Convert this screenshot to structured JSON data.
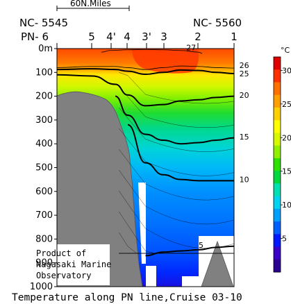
{
  "chart_data": {
    "type": "heatmap",
    "title": "Temperature along PN line,Cruise 03-10",
    "variable_unit": "°C",
    "y_axis": {
      "direction": "downward",
      "ylim": [
        0,
        1000
      ],
      "ticks": [
        "0m",
        "100",
        "200",
        "300",
        "400",
        "500",
        "600",
        "700",
        "800",
        "900",
        "1000"
      ]
    },
    "stations": [
      "PN- 6",
      "5",
      "4'",
      "4",
      "3'",
      "3",
      "2",
      "1"
    ],
    "station_ids": {
      "left": "NC- 5545",
      "right": "NC- 5560"
    },
    "scale_bar": "60N.Miles",
    "colorbar": {
      "range": [
        0,
        32
      ],
      "ticks": [
        5,
        10,
        15,
        20,
        25,
        30
      ],
      "colors": [
        "#2a0090",
        "#3a00c8",
        "#0018ff",
        "#0060ff",
        "#00a0ff",
        "#00d4f0",
        "#00e0b0",
        "#00d840",
        "#30e000",
        "#90f000",
        "#d8f800",
        "#ffff00",
        "#ffd000",
        "#ffa000",
        "#ff7000",
        "#ff3000",
        "#e00000"
      ]
    },
    "contour_levels": [
      5,
      10,
      15,
      20,
      25,
      26,
      27
    ],
    "isotherms": [
      {
        "level": 27,
        "x": [
          0.25,
          0.3,
          0.4,
          0.5,
          0.6,
          0.7,
          0.8,
          0.82
        ],
        "y": [
          15,
          8,
          5,
          4,
          5,
          8,
          15,
          20
        ]
      },
      {
        "level": 26,
        "x": [
          0,
          0.2,
          0.33,
          0.4,
          0.5,
          0.6,
          0.7,
          0.8,
          0.9,
          1.0
        ],
        "y": [
          80,
          75,
          75,
          80,
          88,
          80,
          73,
          75,
          80,
          82
        ]
      },
      {
        "level": 25,
        "x": [
          0,
          0.2,
          0.33,
          0.4,
          0.5,
          0.6,
          0.7,
          0.8,
          0.9,
          1.0
        ],
        "y": [
          88,
          85,
          88,
          95,
          108,
          100,
          90,
          92,
          100,
          105
        ]
      },
      {
        "level": 20,
        "x": [
          0,
          0.2,
          0.33,
          0.4,
          0.5,
          0.6,
          0.7,
          0.8,
          0.9,
          1.0
        ],
        "y": [
          110,
          115,
          150,
          195,
          240,
          235,
          220,
          215,
          205,
          200
        ]
      },
      {
        "level": 15,
        "x": [
          0.33,
          0.4,
          0.5,
          0.6,
          0.7,
          0.8,
          0.9,
          1.0
        ],
        "y": [
          200,
          280,
          360,
          385,
          400,
          395,
          385,
          375
        ]
      },
      {
        "level": 10,
        "x": [
          0.4,
          0.5,
          0.6,
          0.7,
          0.8,
          0.9,
          1.0
        ],
        "y": [
          320,
          480,
          530,
          550,
          555,
          555,
          555
        ]
      },
      {
        "level": 5,
        "x": [
          0.5,
          0.6,
          0.7,
          0.8,
          0.9,
          1.0
        ],
        "y": [
          870,
          855,
          850,
          845,
          835,
          830
        ]
      }
    ],
    "contour_labels": [
      {
        "text": "27",
        "x": 0.73,
        "y": -5
      },
      {
        "text": "26",
        "x": 1.03,
        "y": 70
      },
      {
        "text": "25",
        "x": 1.03,
        "y": 105
      },
      {
        "text": "20",
        "x": 1.03,
        "y": 195
      },
      {
        "text": "15",
        "x": 1.03,
        "y": 370
      },
      {
        "text": "10",
        "x": 1.03,
        "y": 550
      },
      {
        "text": "5",
        "x": 0.8,
        "y": 825
      }
    ],
    "note": [
      "Product of",
      "Nagasaki Marine",
      "Observatory"
    ]
  }
}
